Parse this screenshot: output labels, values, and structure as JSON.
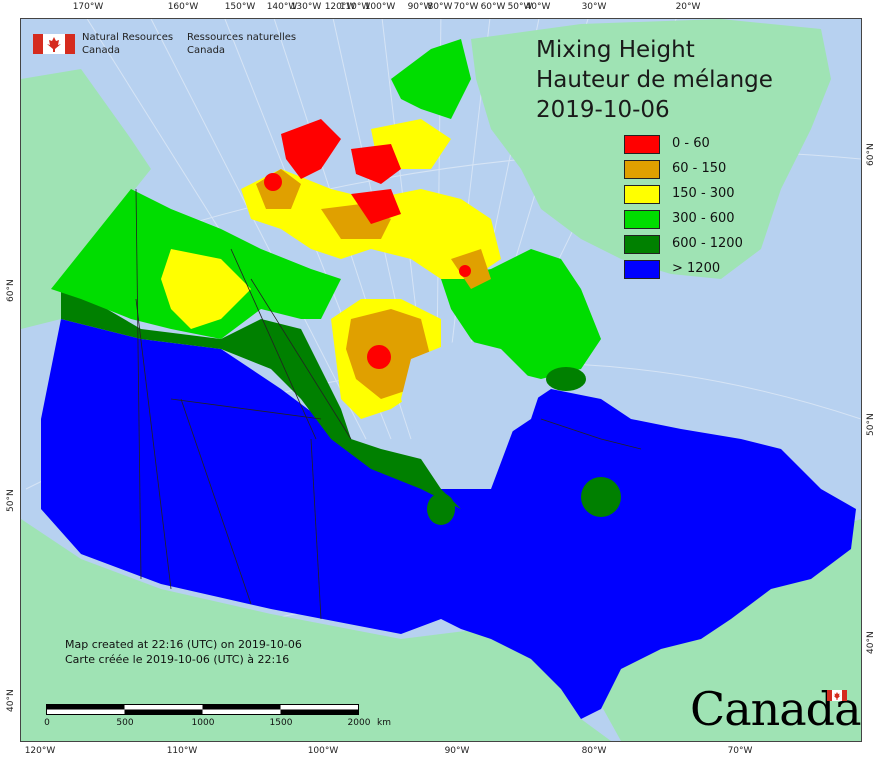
{
  "title": {
    "line1": "Mixing Height",
    "line2": "Hauteur de mélange",
    "date": "2019-10-06"
  },
  "legend": [
    {
      "label": "0 - 60",
      "color": "#ff0000"
    },
    {
      "label": "60 - 150",
      "color": "#e0a000"
    },
    {
      "label": "150 - 300",
      "color": "#ffff00"
    },
    {
      "label": "300 - 600",
      "color": "#00dd00"
    },
    {
      "label": "600 - 1200",
      "color": "#008000"
    },
    {
      "label": "> 1200",
      "color": "#0000ff"
    }
  ],
  "org": {
    "en_line1": "Natural Resources",
    "en_line2": "Canada",
    "fr_line1": "Ressources naturelles",
    "fr_line2": "Canada"
  },
  "credits": {
    "en": "Map created at 22:16 (UTC) on 2019-10-06",
    "fr": "Carte créée le 2019-10-06 (UTC) à 22:16"
  },
  "wordmark": "Canada",
  "scale": {
    "labels": [
      "0",
      "500",
      "1000",
      "1500",
      "2000"
    ],
    "unit": "km"
  },
  "graticule": {
    "top": [
      "170°W",
      "160°W",
      "150°W",
      "140°W",
      "130°W",
      "120°W",
      "110°W",
      "100°W",
      "90°W",
      "80°W",
      "70°W",
      "60°W",
      "50°W",
      "40°W",
      "30°W",
      "20°W"
    ],
    "bottom": [
      "120°W",
      "110°W",
      "100°W",
      "90°W",
      "80°W",
      "70°W"
    ],
    "left": [
      "60°N",
      "50°N",
      "40°N"
    ],
    "right": [
      "60°N",
      "50°N",
      "40°N"
    ]
  },
  "colors": {
    "ocean": "#b7d1f0",
    "land_other": "#9fe3b4",
    "boundary": "#222222",
    "graticule": "#d9e6f5"
  }
}
